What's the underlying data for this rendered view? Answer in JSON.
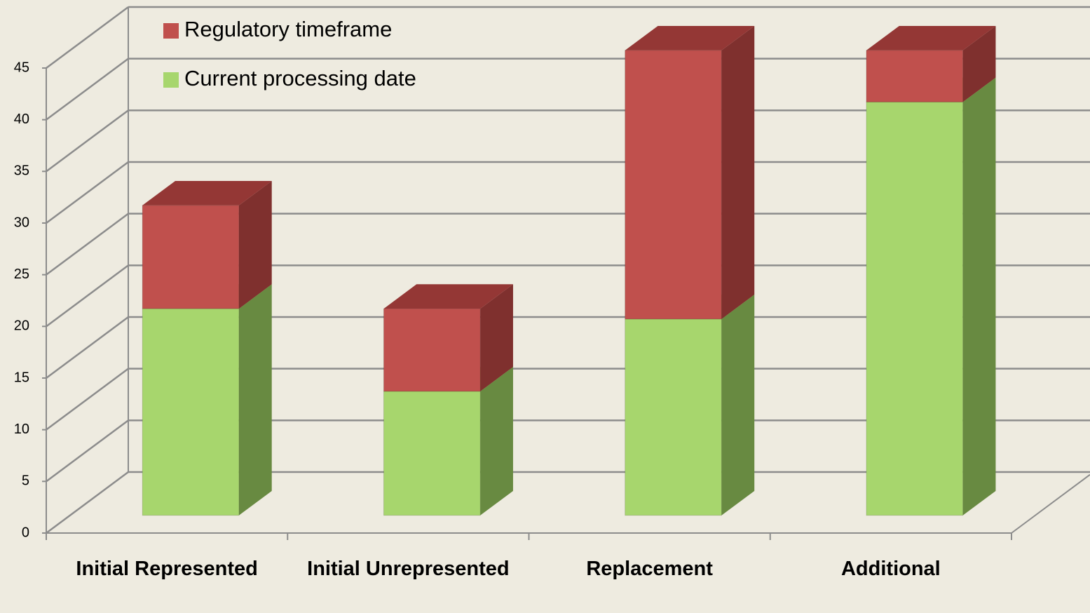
{
  "chart_data": {
    "type": "bar3d_stacked",
    "categories": [
      "Initial Represented",
      "Initial Unrepresented",
      "Replacement",
      "Additional"
    ],
    "series": [
      {
        "name": "Current processing date",
        "color": "#a7d66d",
        "side_color": "#688a41",
        "top_color": "#8fb85a",
        "values": [
          20,
          12,
          19,
          40
        ]
      },
      {
        "name": "Regulatory timeframe",
        "color": "#c0504d",
        "side_color": "#7f302e",
        "top_color": "#943735",
        "values": [
          10,
          8,
          26,
          5
        ]
      }
    ],
    "ylim": [
      0,
      45
    ],
    "yticks": [
      0,
      5,
      10,
      15,
      20,
      25,
      30,
      35,
      40,
      45
    ],
    "grid": true,
    "legend": "upper left"
  }
}
